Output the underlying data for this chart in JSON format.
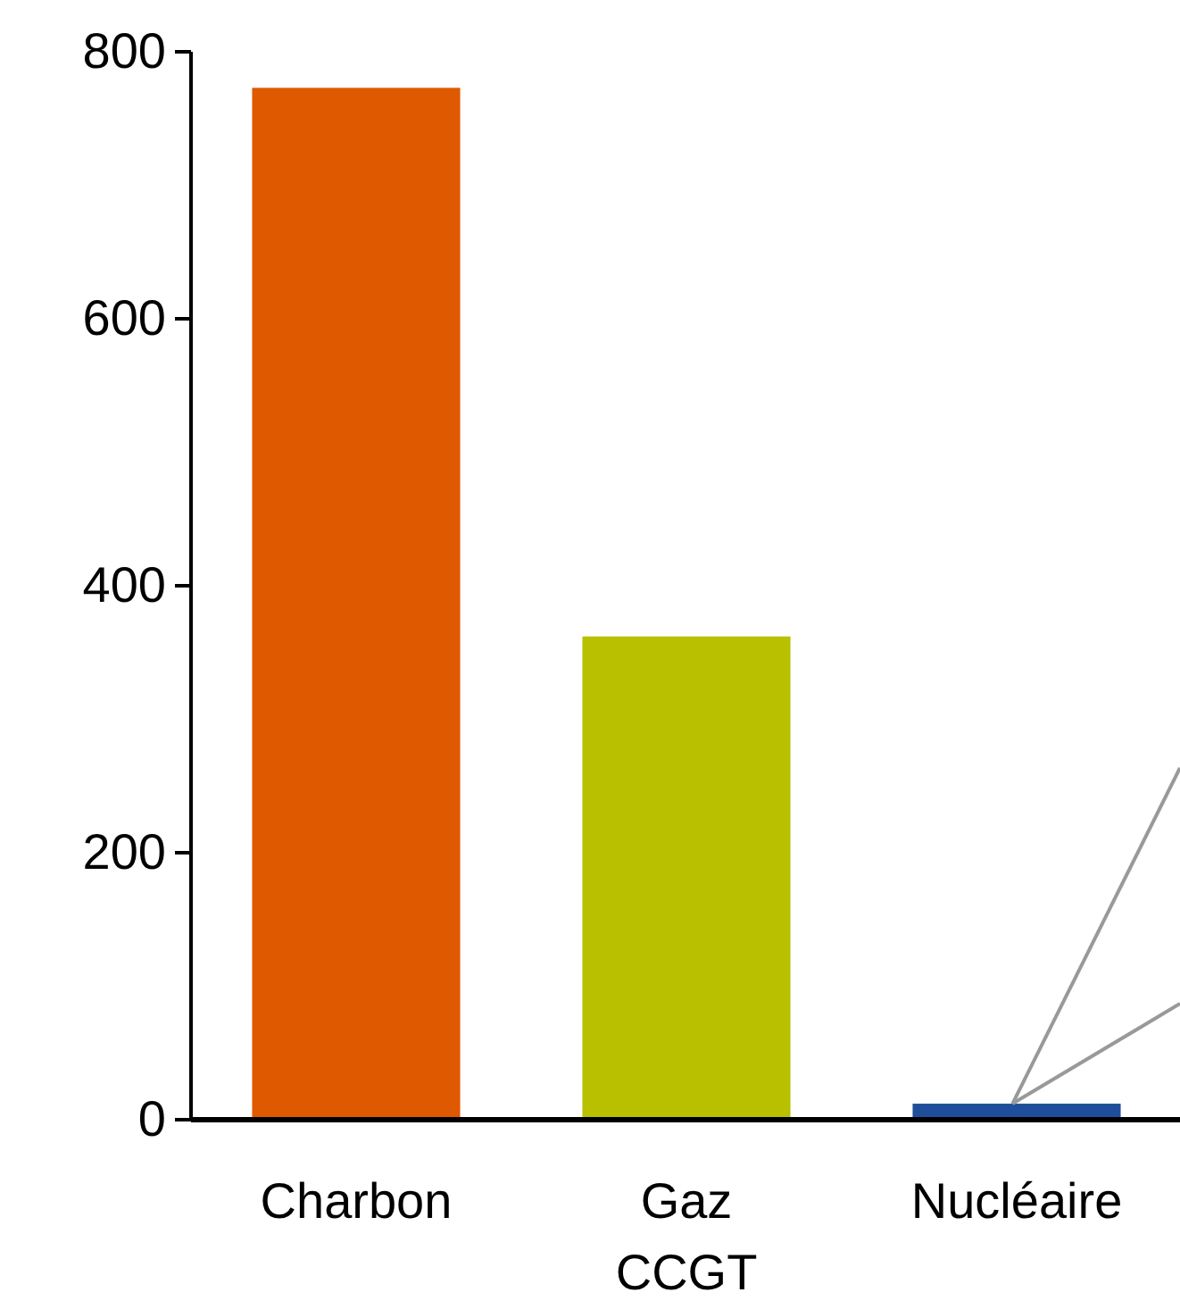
{
  "chart_data": {
    "type": "bar",
    "categories": [
      "Charbon",
      "Gaz\nCCGT",
      "Nucléaire"
    ],
    "values": [
      773,
      362,
      12
    ],
    "colors": [
      "#df5900",
      "#b8c000",
      "#1f4e9a"
    ],
    "ylim": [
      0,
      800
    ],
    "yticks": [
      0,
      200,
      400,
      600,
      800
    ],
    "grid": false
  }
}
